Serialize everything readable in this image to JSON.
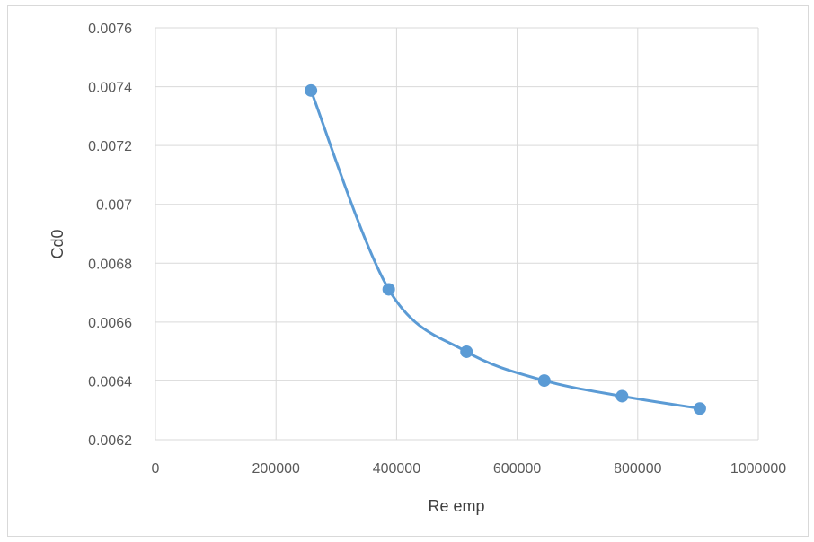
{
  "chart_data": {
    "type": "scatter",
    "title": "",
    "xlabel": "Re emp",
    "ylabel": "Cd0",
    "xlim": [
      0,
      1000000
    ],
    "ylim": [
      0.0062,
      0.0076
    ],
    "x_ticks": [
      "0",
      "200000",
      "400000",
      "600000",
      "800000",
      "1000000"
    ],
    "y_ticks": [
      "0.0062",
      "0.0064",
      "0.0066",
      "0.0068",
      "0.007",
      "0.0072",
      "0.0074",
      "0.0076"
    ],
    "grid": true,
    "smooth_line": true,
    "series": [
      {
        "color": "#5b9bd5",
        "x": [
          258000,
          387000,
          516000,
          645000,
          774000,
          903000
        ],
        "y": [
          0.007387,
          0.006711,
          0.006499,
          0.006401,
          0.006348,
          0.006306
        ]
      }
    ]
  }
}
